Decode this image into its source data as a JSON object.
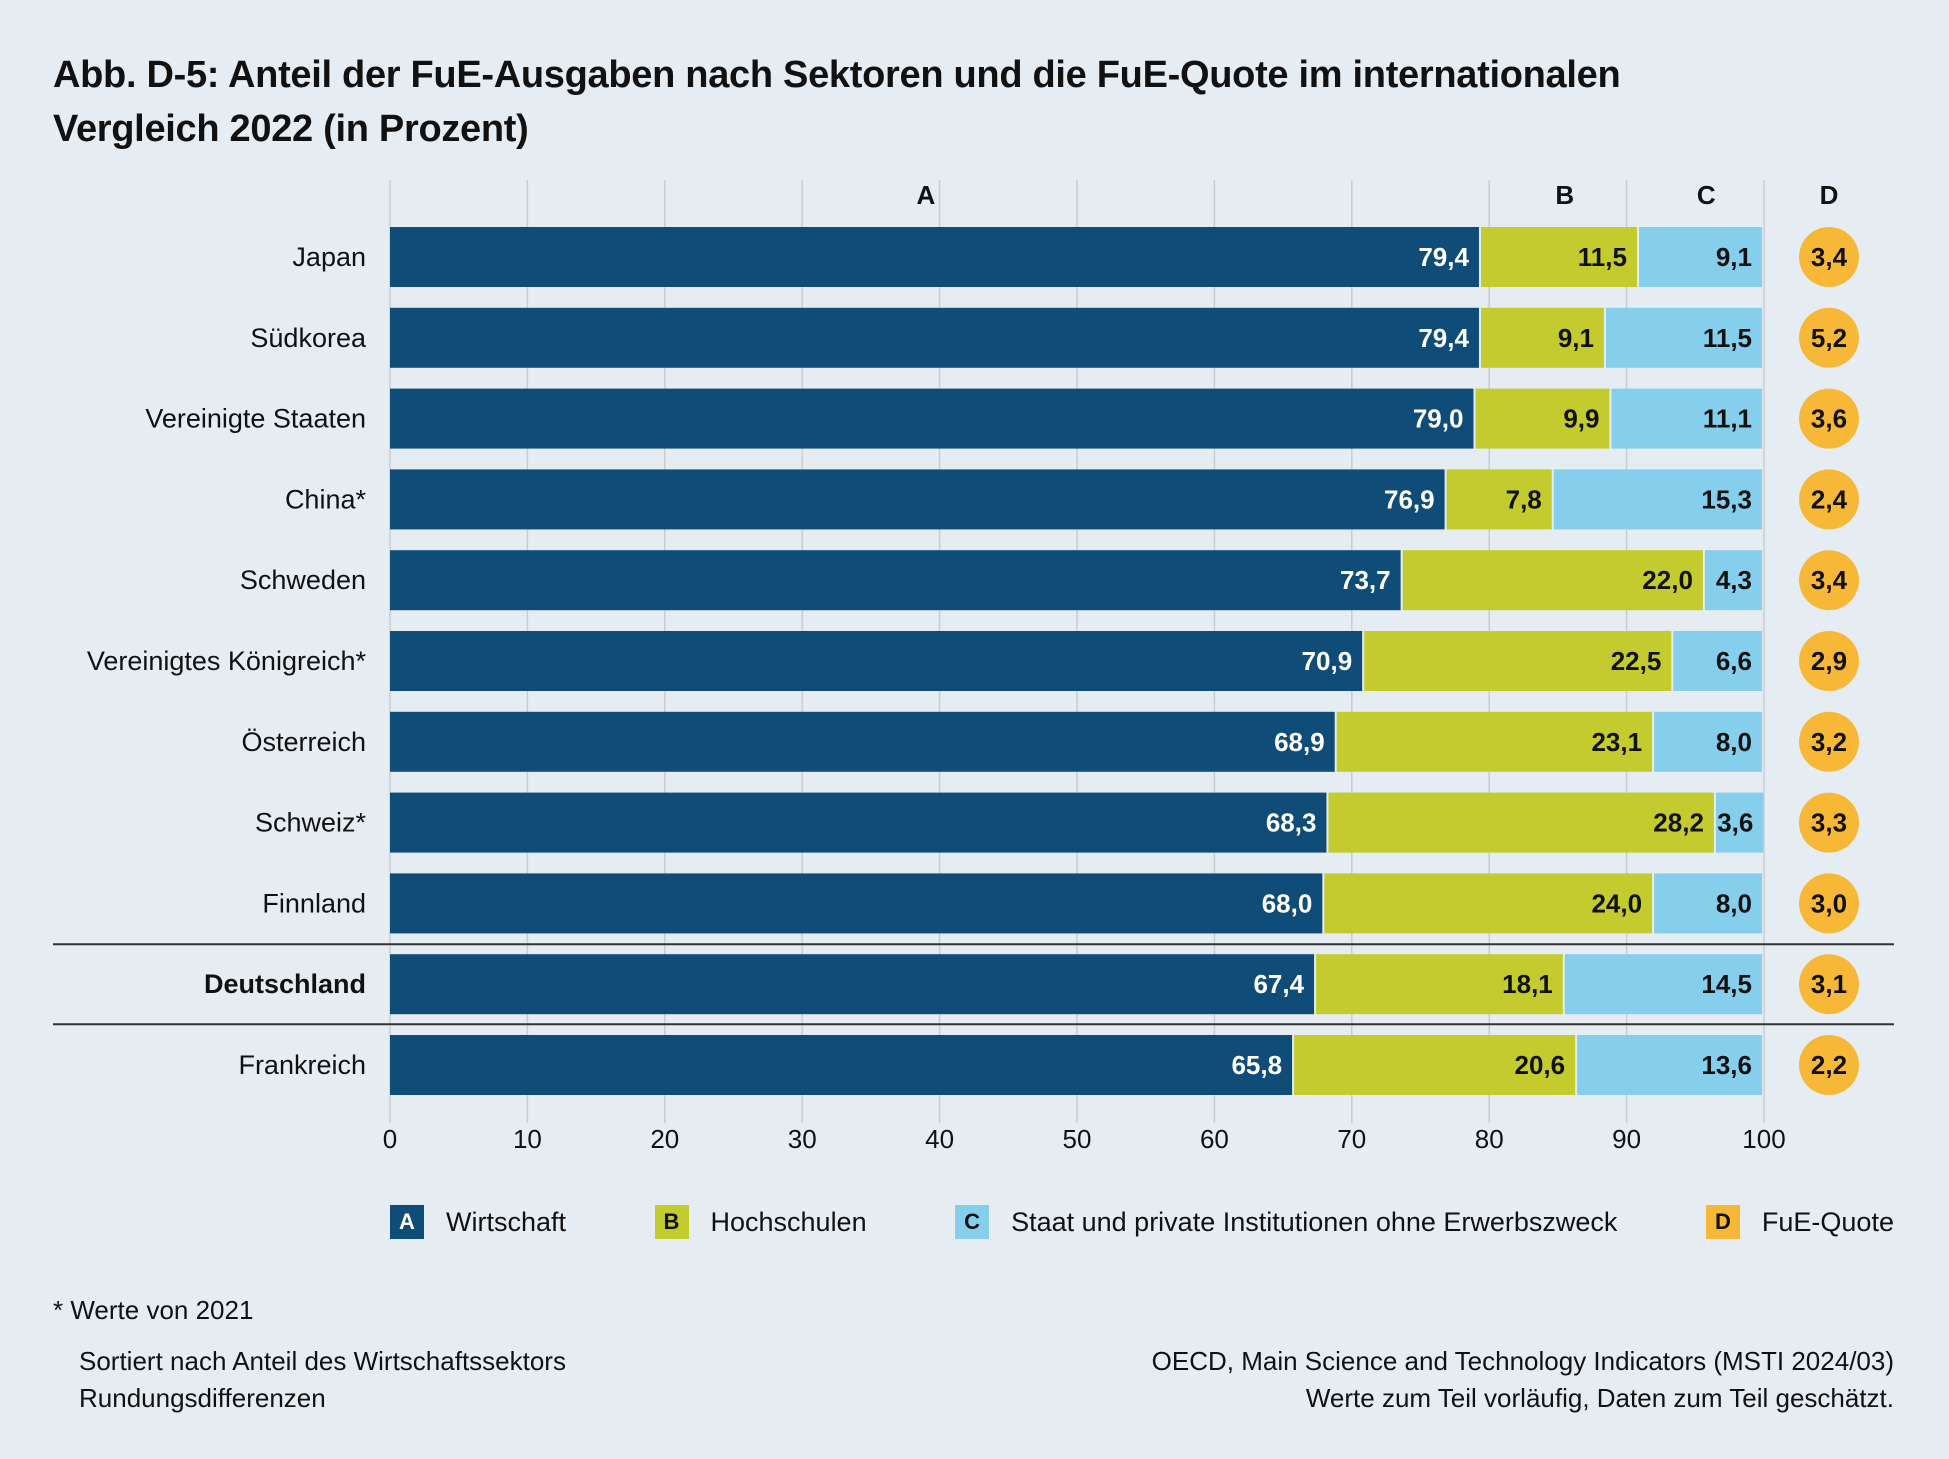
{
  "title_line1": "Abb. D-5: Anteil der FuE-Ausgaben nach Sektoren und die FuE-Quote im internationalen",
  "title_line2": "Vergleich 2022 (in Prozent)",
  "colors": {
    "A": "#0f4c78",
    "B": "#c3cb2e",
    "C": "#85ceec",
    "D": "#f7b838",
    "background": "#e5edf3"
  },
  "chart_data": {
    "type": "bar",
    "orientation": "horizontal-stacked",
    "title": "Abb. D-5: Anteil der FuE-Ausgaben nach Sektoren und die FuE-Quote im internationalen Vergleich 2022 (in Prozent)",
    "column_headers": [
      "A",
      "B",
      "C",
      "D"
    ],
    "categories": [
      "Japan",
      "Südkorea",
      "Vereinigte Staaten",
      "China*",
      "Schweden",
      "Vereinigtes Königreich*",
      "Österreich",
      "Schweiz*",
      "Finnland",
      "Deutschland",
      "Frankreich"
    ],
    "highlight": "Deutschland",
    "series": [
      {
        "key": "A",
        "name": "Wirtschaft",
        "values": [
          79.4,
          79.4,
          79.0,
          76.9,
          73.7,
          70.9,
          68.9,
          68.3,
          68.0,
          67.4,
          65.8
        ],
        "labels": [
          "79,4",
          "79,4",
          "79,0",
          "76,9",
          "73,7",
          "70,9",
          "68,9",
          "68,3",
          "68,0",
          "67,4",
          "65,8"
        ]
      },
      {
        "key": "B",
        "name": "Hochschulen",
        "values": [
          11.5,
          9.1,
          9.9,
          7.8,
          22.0,
          22.5,
          23.1,
          28.2,
          24.0,
          18.1,
          20.6
        ],
        "labels": [
          "11,5",
          "9,1",
          "9,9",
          "7,8",
          "22,0",
          "22,5",
          "23,1",
          "28,2",
          "24,0",
          "18,1",
          "20,6"
        ]
      },
      {
        "key": "C",
        "name": "Staat und private Institutionen ohne Erwerbszweck",
        "values": [
          9.1,
          11.5,
          11.1,
          15.3,
          4.3,
          6.6,
          8.0,
          3.6,
          8.0,
          14.5,
          13.6
        ],
        "labels": [
          "9,1",
          "11,5",
          "11,1",
          "15,3",
          "4,3",
          "6,6",
          "8,0",
          "3,6",
          "8,0",
          "14,5",
          "13,6"
        ]
      }
    ],
    "fue_quote": {
      "key": "D",
      "name": "FuE-Quote",
      "values": [
        3.4,
        5.2,
        3.6,
        2.4,
        3.4,
        2.9,
        3.2,
        3.3,
        3.0,
        3.1,
        2.2
      ],
      "labels": [
        "3,4",
        "5,2",
        "3,6",
        "2,4",
        "3,4",
        "2,9",
        "3,2",
        "3,3",
        "3,0",
        "3,1",
        "2,2"
      ]
    },
    "xlim": [
      0,
      100
    ],
    "xticks": [
      0,
      10,
      20,
      30,
      40,
      50,
      60,
      70,
      80,
      90,
      100
    ],
    "xtick_labels": [
      "0",
      "10",
      "20",
      "30",
      "40",
      "50",
      "60",
      "70",
      "80",
      "90",
      "100"
    ],
    "grid": true,
    "legend_position": "bottom",
    "xlabel": "",
    "ylabel": ""
  },
  "legend": [
    {
      "key": "A",
      "label": "Wirtschaft"
    },
    {
      "key": "B",
      "label": "Hochschulen"
    },
    {
      "key": "C",
      "label": "Staat und private Institutionen ohne Erwerbszweck"
    },
    {
      "key": "D",
      "label": "FuE-Quote"
    }
  ],
  "footnotes": {
    "asterisk": "*  Werte von 2021",
    "left_line1": "Sortiert nach Anteil des Wirtschaftssektors",
    "left_line2": "Rundungsdifferenzen",
    "right_line1": "OECD, Main Science and Technology Indicators (MSTI 2024/03)",
    "right_line2": "Werte zum Teil vorläufig, Daten zum Teil geschätzt."
  }
}
